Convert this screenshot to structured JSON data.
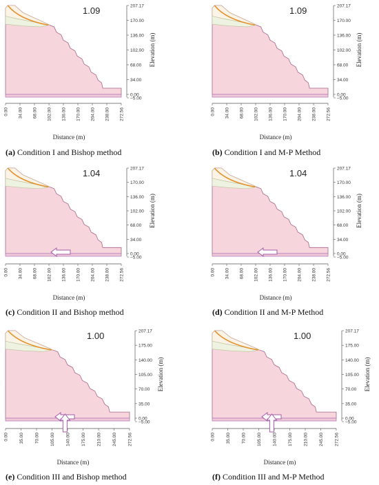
{
  "colors": {
    "slope_fill": "#f6d5dc",
    "slope_stroke": "#a8648a",
    "upper_layer_fill": "#fbf3e6",
    "middle_layer_fill": "#eef3e1",
    "slip_surface": "#e3902a",
    "base_band": "#b97bbf",
    "arrow_stroke": "#a55aa8",
    "axis": "#555555"
  },
  "common": {
    "xlabel": "Distance (m)",
    "ylabel": "Elevation (m)"
  },
  "panels": [
    {
      "label_letter": "(a)",
      "caption": " Condition I and Bishop method",
      "fos": "1.09",
      "x_ticks": [
        "0.00",
        "34.00",
        "68.00",
        "102.00",
        "136.00",
        "170.00",
        "204.00",
        "238.00",
        "272.56"
      ],
      "y_ticks": [
        "207.17",
        "170.00",
        "136.00",
        "102.00",
        "68.00",
        "34.00",
        "0.00",
        "−5.00"
      ],
      "arrows": "none"
    },
    {
      "label_letter": "(b)",
      "caption": " Condition I and M-P Method",
      "fos": "1.09",
      "x_ticks": [
        "0.00",
        "34.00",
        "68.00",
        "102.00",
        "136.00",
        "170.00",
        "204.00",
        "238.00",
        "272.56"
      ],
      "y_ticks": [
        "207.17",
        "170.00",
        "136.00",
        "102.00",
        "68.00",
        "34.00",
        "0.00",
        "−5.00"
      ],
      "arrows": "none"
    },
    {
      "label_letter": "(c)",
      "caption": " Condition II and Bishop method",
      "fos": "1.04",
      "x_ticks": [
        "0.00",
        "34.00",
        "68.00",
        "102.00",
        "136.00",
        "170.00",
        "204.00",
        "238.00",
        "272.56"
      ],
      "y_ticks": [
        "207.17",
        "170.00",
        "136.00",
        "102.00",
        "68.00",
        "34.00",
        "0.00",
        "−5.00"
      ],
      "arrows": "horizontal"
    },
    {
      "label_letter": "(d)",
      "caption": " Condition II and M-P Method",
      "fos": "1.04",
      "x_ticks": [
        "0.00",
        "34.00",
        "68.00",
        "102.00",
        "136.00",
        "170.00",
        "204.00",
        "238.00",
        "272.56"
      ],
      "y_ticks": [
        "207.17",
        "170.00",
        "136.00",
        "102.00",
        "68.00",
        "34.00",
        "0.00",
        "−5.00"
      ],
      "arrows": "horizontal"
    },
    {
      "label_letter": "(e)",
      "caption": " Condition III and Bishop method",
      "fos": "1.00",
      "x_ticks": [
        "0.00",
        "35.00",
        "70.00",
        "105.00",
        "140.00",
        "175.00",
        "210.00",
        "245.00",
        "272.56"
      ],
      "y_ticks": [
        "207.17",
        "175.00",
        "140.00",
        "105.00",
        "70.00",
        "35.00",
        "0.00",
        "−5.00"
      ],
      "arrows": "both"
    },
    {
      "label_letter": "(f)",
      "caption": " Condition III and M-P Method",
      "fos": "1.00",
      "x_ticks": [
        "0.00",
        "35.00",
        "70.00",
        "105.00",
        "140.00",
        "175.00",
        "210.00",
        "245.00",
        "272.56"
      ],
      "y_ticks": [
        "207.17",
        "175.00",
        "140.00",
        "105.00",
        "70.00",
        "35.00",
        "0.00",
        "−5.00"
      ],
      "arrows": "both"
    }
  ]
}
